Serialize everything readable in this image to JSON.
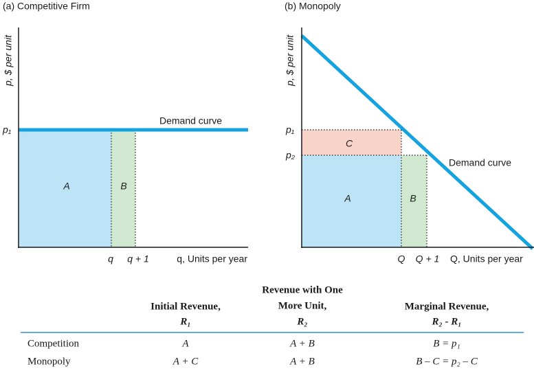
{
  "panels": [
    {
      "title": "(a) Competitive Firm",
      "y_axis_label": "p, $ per unit",
      "x_axis_label": "q, Units per year",
      "x_ticks": [
        "q",
        "q + 1"
      ],
      "price_labels": [
        "p₁"
      ],
      "curve_label": "Demand curve",
      "areas": [
        "A",
        "B"
      ]
    },
    {
      "title": "(b) Monopoly",
      "y_axis_label": "p, $ per unit",
      "x_axis_label": "Q, Units per year",
      "x_ticks": [
        "Q",
        "Q + 1"
      ],
      "price_labels": [
        "p₁",
        "p₂"
      ],
      "curve_label": "Demand curve",
      "areas": [
        "C",
        "A",
        "B"
      ]
    }
  ],
  "table": {
    "headers": [
      [
        "Initial Revenue,",
        "R₁"
      ],
      [
        "Revenue with One",
        "More Unit,",
        "R₂"
      ],
      [
        "Marginal Revenue,",
        "R₂ - R₁"
      ]
    ],
    "rows": [
      [
        "Competition",
        "A",
        "A + B",
        "B = p₁"
      ],
      [
        "Monopoly",
        "A + C",
        "A + B",
        "B – C = p₂ – C"
      ]
    ]
  }
}
